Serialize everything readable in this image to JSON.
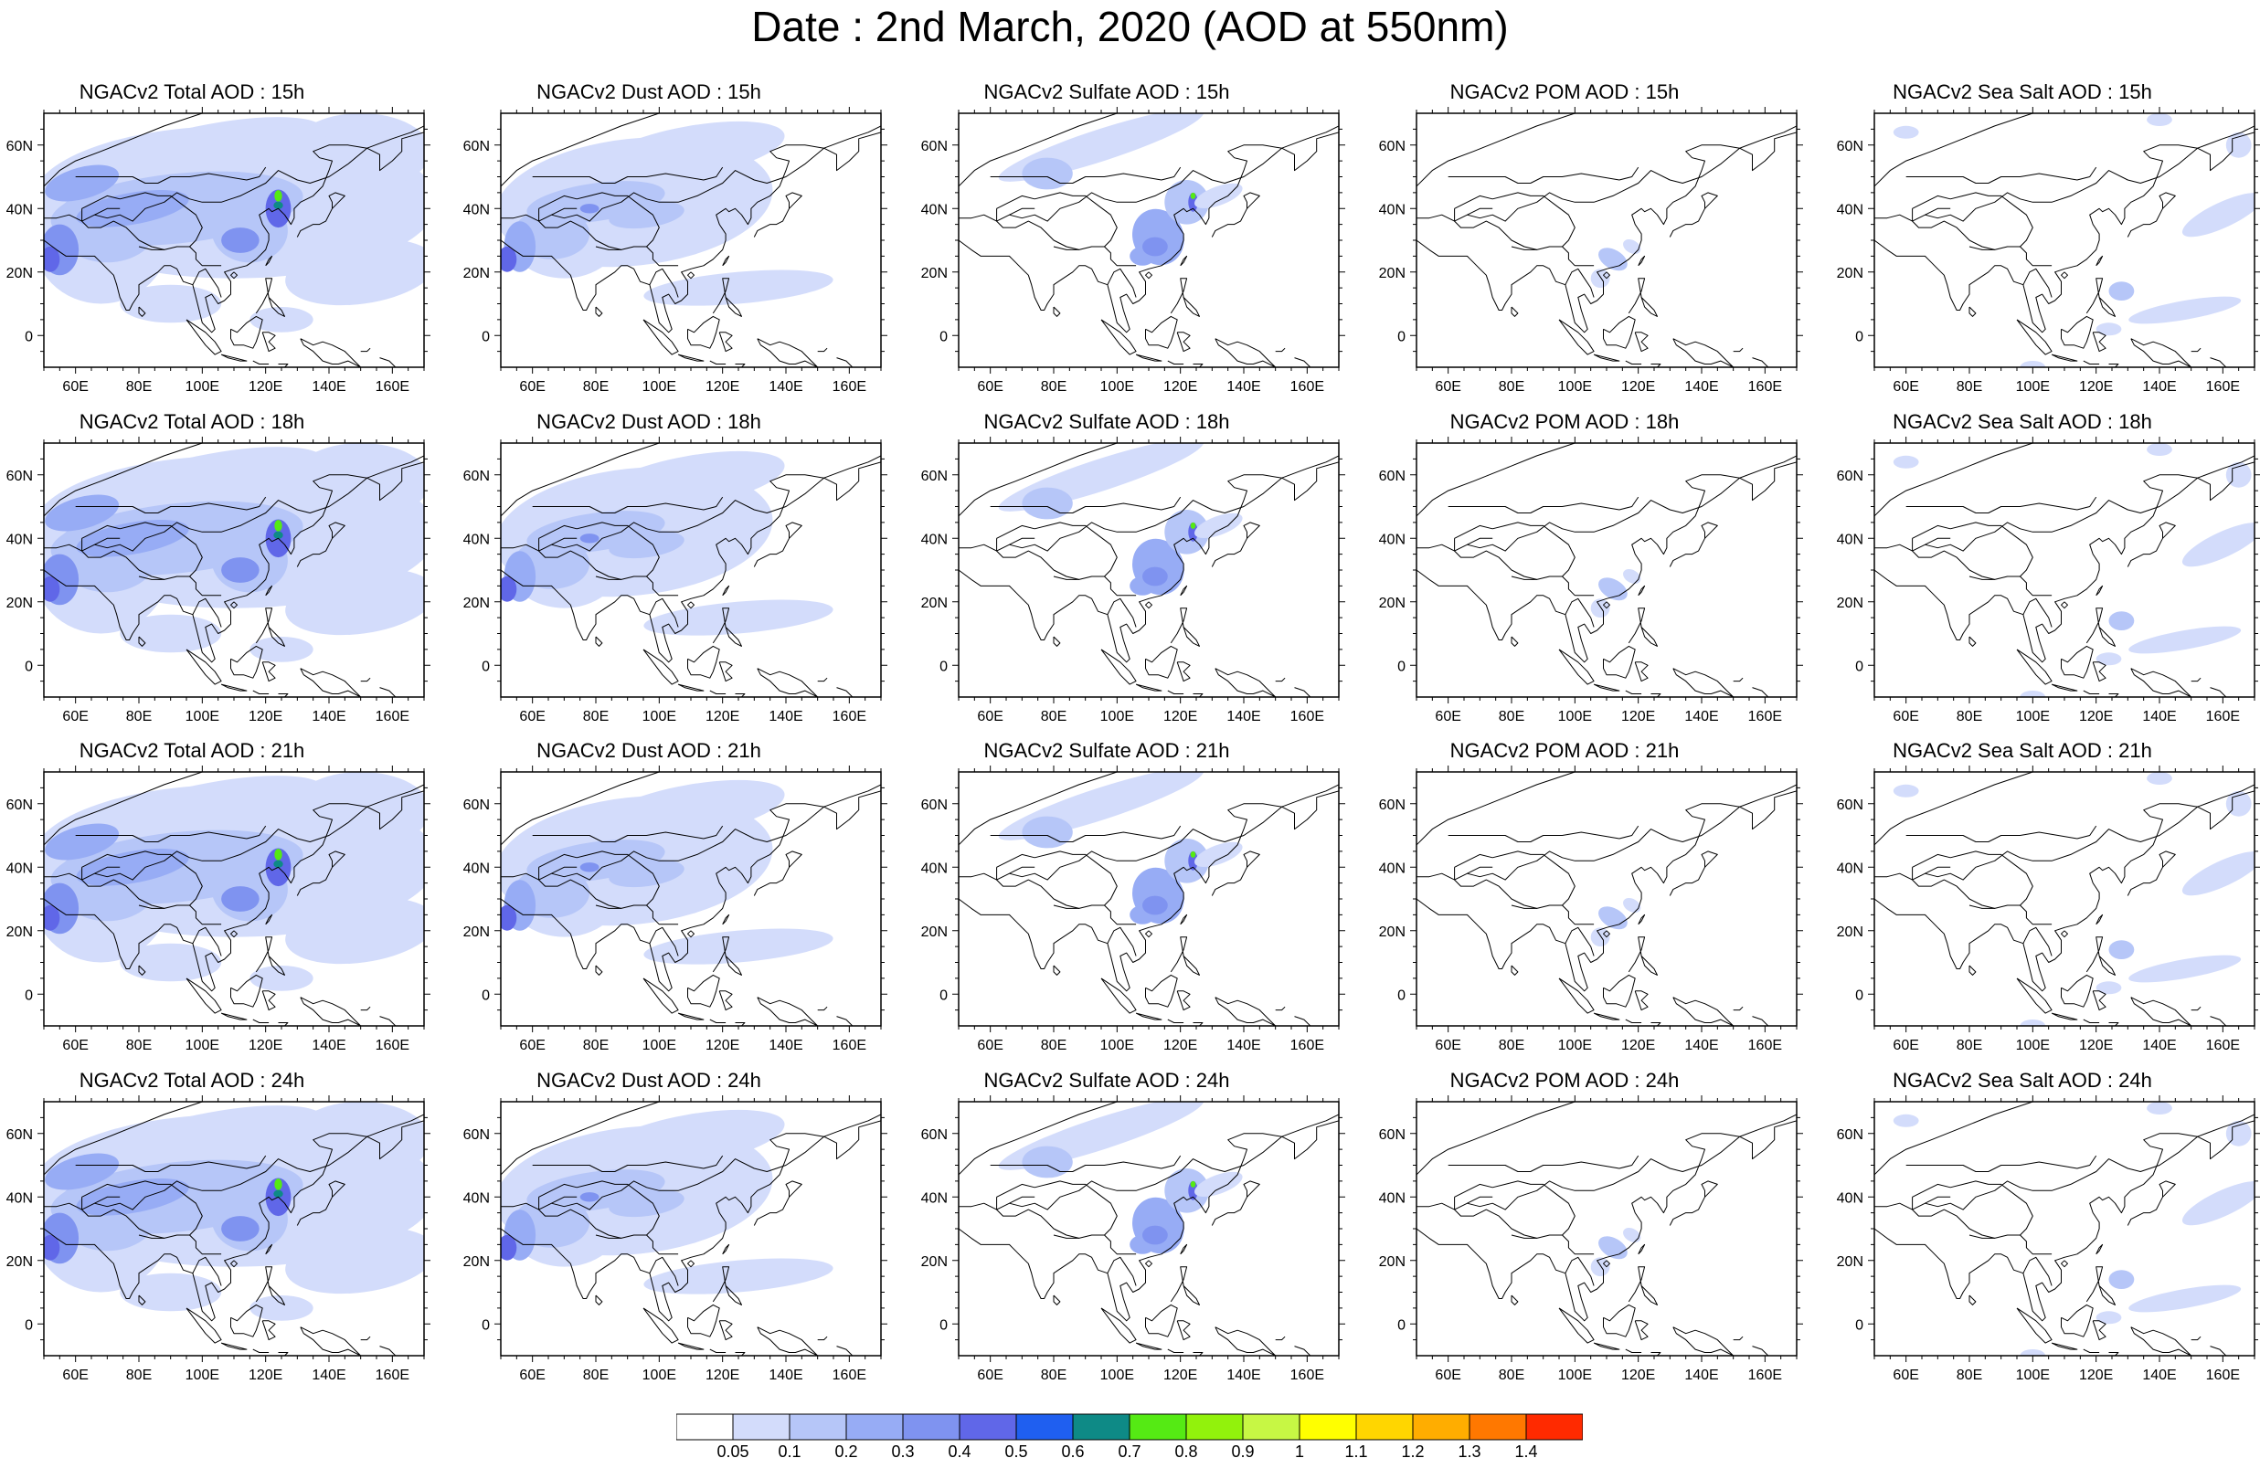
{
  "title": "Date : 2nd March, 2020 (AOD at 550nm)",
  "lat_ticks": [
    "60N",
    "40N",
    "20N",
    "0"
  ],
  "lon_ticks": [
    "60E",
    "80E",
    "100E",
    "120E",
    "140E",
    "160E"
  ],
  "colors": {
    "map_background": "#ffffff",
    "coastline": "#000000",
    "frame": "#000000"
  },
  "colorbar": {
    "colors": [
      "#ffffff",
      "#d3dcfb",
      "#b6c6f8",
      "#97acf5",
      "#7f93f0",
      "#6067e8",
      "#1f5ff0",
      "#0e8a86",
      "#55ea14",
      "#92f20c",
      "#c7f744",
      "#ffff00",
      "#ffd600",
      "#ffad00",
      "#ff7800",
      "#ff2a00"
    ],
    "labels": [
      "0.05",
      "0.1",
      "0.2",
      "0.3",
      "0.4",
      "0.5",
      "0.6",
      "0.7",
      "0.8",
      "0.9",
      "1",
      "1.1",
      "1.2",
      "1.3",
      "1.4"
    ]
  },
  "rows": [
    {
      "panels": [
        {
          "title": "NGACv2 Total AOD : 15h",
          "species": "total"
        },
        {
          "title": "NGACv2 Dust AOD : 15h",
          "species": "dust"
        },
        {
          "title": "NGACv2 Sulfate AOD : 15h",
          "species": "sulfate"
        },
        {
          "title": "NGACv2 POM AOD : 15h",
          "species": "pom"
        },
        {
          "title": "NGACv2 Sea Salt AOD : 15h",
          "species": "seasalt"
        }
      ]
    },
    {
      "panels": [
        {
          "title": "NGACv2 Total AOD : 18h",
          "species": "total"
        },
        {
          "title": "NGACv2 Dust AOD : 18h",
          "species": "dust"
        },
        {
          "title": "NGACv2 Sulfate AOD : 18h",
          "species": "sulfate"
        },
        {
          "title": "NGACv2 POM AOD : 18h",
          "species": "pom"
        },
        {
          "title": "NGACv2 Sea Salt AOD : 18h",
          "species": "seasalt"
        }
      ]
    },
    {
      "panels": [
        {
          "title": "NGACv2 Total AOD : 21h",
          "species": "total"
        },
        {
          "title": "NGACv2 Dust AOD : 21h",
          "species": "dust"
        },
        {
          "title": "NGACv2 Sulfate AOD : 21h",
          "species": "sulfate"
        },
        {
          "title": "NGACv2 POM AOD : 21h",
          "species": "pom"
        },
        {
          "title": "NGACv2 Sea Salt AOD : 21h",
          "species": "seasalt"
        }
      ]
    },
    {
      "panels": [
        {
          "title": "NGACv2 Total AOD : 24h",
          "species": "total"
        },
        {
          "title": "NGACv2 Dust AOD : 24h",
          "species": "dust"
        },
        {
          "title": "NGACv2 Sulfate AOD : 24h",
          "species": "sulfate"
        },
        {
          "title": "NGACv2 POM AOD : 24h",
          "species": "pom"
        },
        {
          "title": "NGACv2 Sea Salt  AOD : 24h",
          "species": "seasalt"
        }
      ]
    }
  ]
}
